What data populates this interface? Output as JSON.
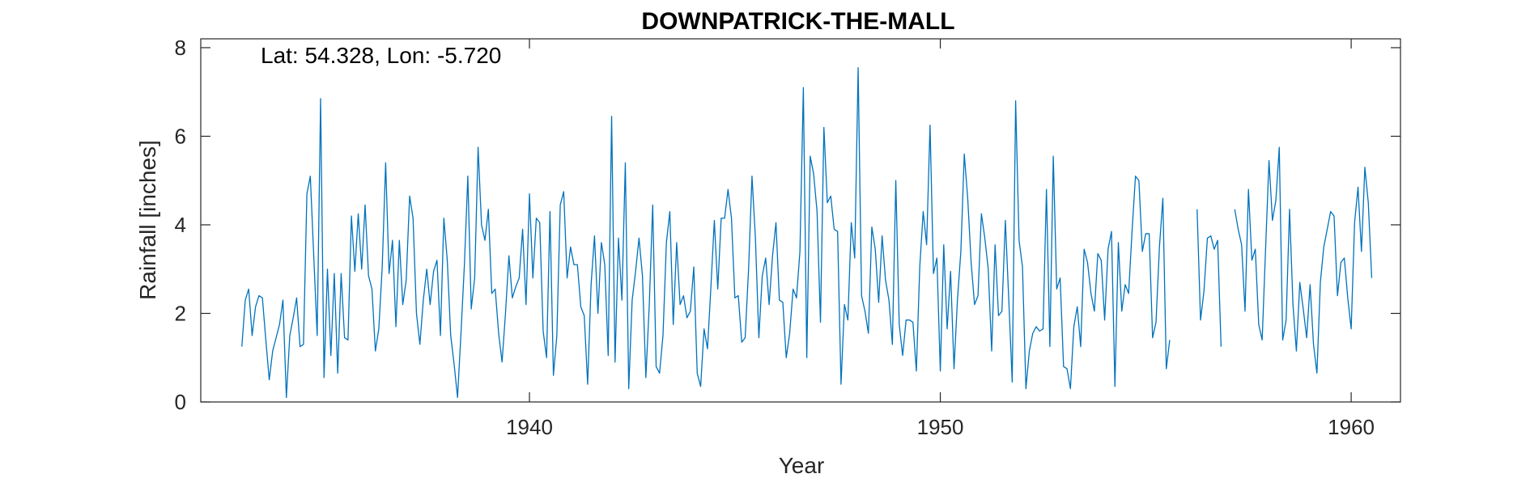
{
  "chart_data": {
    "type": "line",
    "title": "DOWNPATRICK-THE-MALL",
    "annotation": "Lat: 54.328, Lon: -5.720",
    "xlabel": "Year",
    "ylabel": "Rainfall [inches]",
    "xlim": [
      1932.0,
      1961.2
    ],
    "ylim": [
      0,
      8.2
    ],
    "xticks": [
      1940,
      1950,
      1960
    ],
    "yticks": [
      0,
      2,
      4,
      6,
      8
    ],
    "grid": false,
    "line_color": "#0072BD",
    "series": [
      {
        "start_year": 1933.0,
        "step_months": 1,
        "segments": [
          {
            "start": "1933-01",
            "values": [
              1.25,
              2.3,
              2.55,
              1.5,
              2.15,
              2.4,
              2.35,
              1.4,
              0.5,
              1.15,
              1.45,
              1.75,
              2.3,
              0.1,
              1.5,
              1.9,
              2.35,
              1.25,
              1.3,
              4.7,
              5.1,
              3.3,
              1.5,
              6.85,
              0.55,
              3.0,
              1.05,
              2.9,
              0.65,
              2.9,
              1.45,
              1.4,
              4.2,
              2.95,
              4.25,
              3.0,
              4.45,
              2.85,
              2.55,
              1.15,
              1.65,
              3.05,
              5.4,
              2.9,
              3.65,
              1.7,
              3.65,
              2.2,
              2.75,
              4.65,
              4.15,
              2.0,
              1.3,
              2.3,
              3.0,
              2.2,
              2.95,
              3.2,
              1.5,
              4.15,
              3.2,
              1.5,
              0.85,
              0.1,
              1.55,
              3.1,
              5.1,
              2.1,
              2.8,
              5.75,
              4.0,
              3.65,
              4.35,
              2.45,
              2.55,
              1.55,
              0.9,
              2.0,
              3.3,
              2.35,
              2.6,
              2.8,
              3.9,
              2.2,
              4.7,
              2.8,
              4.15,
              4.05,
              1.6,
              1.0,
              4.3,
              0.6,
              1.5,
              4.45,
              4.75,
              2.8,
              3.5,
              3.1,
              3.1,
              2.15,
              1.95,
              0.4,
              2.65,
              3.75,
              2.0,
              3.6,
              3.1,
              1.05,
              6.45,
              0.9,
              3.7,
              2.3,
              5.4,
              0.3,
              2.3,
              2.95,
              3.7,
              2.85,
              0.55,
              2.2,
              4.45,
              0.8,
              0.65,
              1.5,
              3.6,
              4.3,
              1.75,
              3.6,
              2.2,
              2.4,
              1.9,
              2.05,
              3.05,
              0.65,
              0.35,
              1.65,
              1.2,
              2.6,
              4.1,
              2.55,
              4.15,
              4.15,
              4.8,
              4.15,
              2.35,
              2.4,
              1.35,
              1.45,
              3.0,
              5.1,
              3.7,
              1.45,
              2.85,
              3.25,
              2.2,
              3.3,
              4.05,
              2.3,
              2.25,
              1.0,
              1.55,
              2.55,
              2.35,
              3.4,
              7.1,
              1.0,
              5.55,
              5.15,
              4.3,
              1.8,
              6.2,
              4.5,
              4.65,
              3.9,
              3.85,
              0.4,
              2.2,
              1.85,
              4.05,
              3.25,
              7.55,
              2.4,
              2.05,
              1.55,
              3.95,
              3.45,
              2.25,
              3.75,
              2.75,
              2.3,
              1.3,
              5.0,
              1.75,
              1.05,
              1.85,
              1.85,
              1.8,
              0.7,
              3.05,
              4.3,
              3.55,
              6.25,
              2.9,
              3.25,
              0.7,
              3.55,
              1.65,
              2.95,
              0.75,
              2.3,
              3.4,
              5.6,
              4.6,
              3.15,
              2.2,
              2.4,
              4.25,
              3.7,
              3.0,
              1.15,
              3.55,
              1.95,
              2.05,
              4.1,
              2.3,
              0.45,
              6.8,
              3.65,
              3.05,
              0.3,
              1.15,
              1.55,
              1.7,
              1.6,
              1.65,
              4.8,
              1.25,
              5.55,
              2.55,
              2.8,
              0.8,
              0.75,
              0.3,
              1.7,
              2.15,
              1.25,
              3.45,
              3.15,
              2.45,
              2.05,
              3.35,
              3.2,
              1.85,
              3.45,
              3.85,
              0.35,
              3.6,
              2.05,
              2.65,
              2.45,
              3.85,
              5.1,
              5.0,
              3.4,
              3.8,
              3.8,
              1.45,
              1.8,
              3.5,
              4.6,
              0.75,
              1.4
            ]
          },
          {
            "start": "1956-04",
            "values": [
              4.35,
              1.85,
              2.5,
              3.7,
              3.75,
              3.45,
              3.65,
              1.25
            ]
          },
          {
            "start": "1957-03",
            "values": [
              4.35,
              3.9,
              3.55,
              2.05,
              4.8,
              3.2,
              3.45,
              1.75,
              1.4,
              3.45,
              5.45,
              4.1,
              4.55,
              5.75,
              1.4,
              1.85,
              4.35,
              2.2,
              1.15,
              2.7,
              2.1,
              1.45,
              2.65,
              1.3,
              0.65,
              2.7,
              3.5,
              3.9,
              4.3,
              4.2,
              2.4,
              3.15,
              3.25,
              2.35,
              1.65,
              4.05,
              4.85,
              3.4,
              5.3,
              4.5,
              2.8
            ]
          }
        ]
      }
    ]
  }
}
